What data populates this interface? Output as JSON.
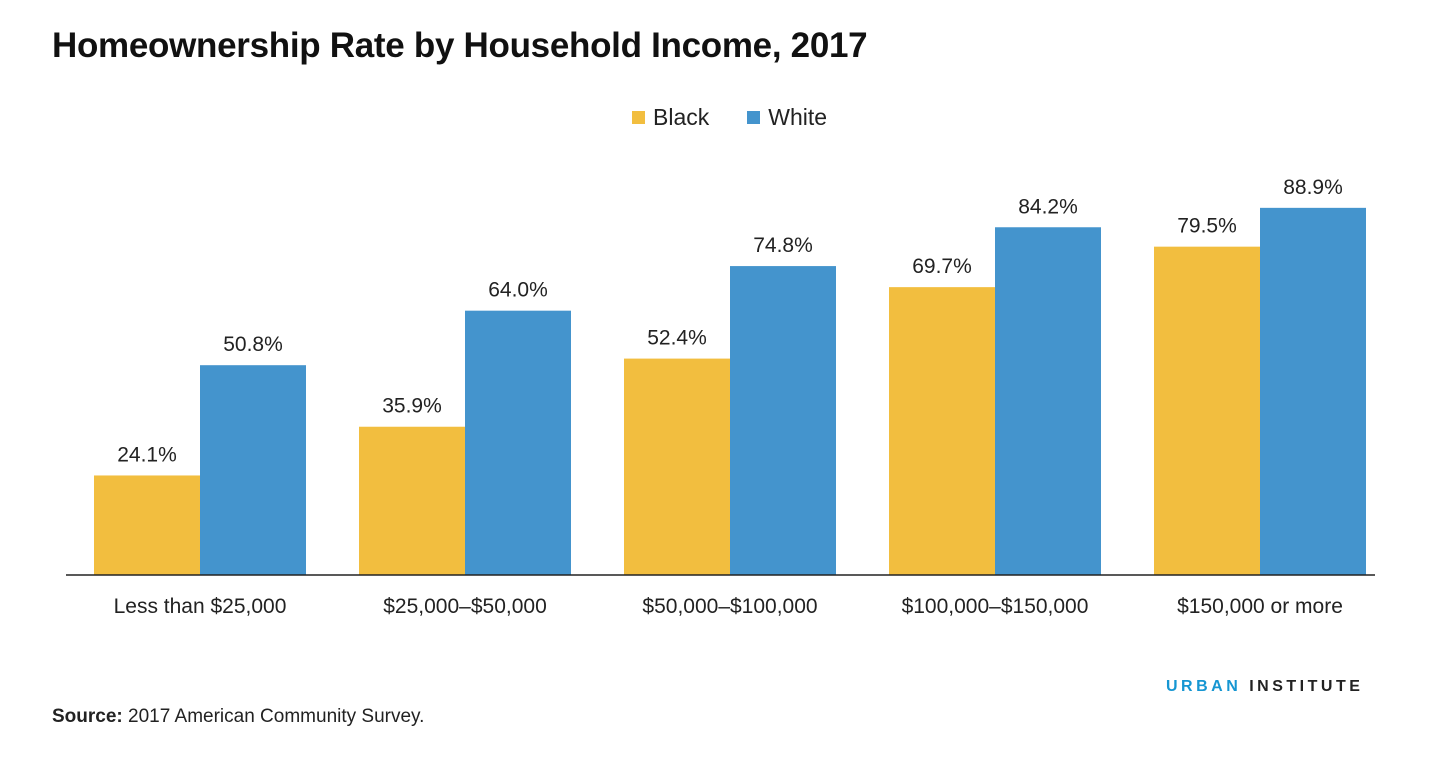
{
  "colors": {
    "black": "#f2be3f",
    "white": "#4494cd",
    "axis": "#222222",
    "brand_blue": "#1696d2"
  },
  "chart_data": {
    "type": "bar",
    "title": "Homeownership Rate by Household Income, 2017",
    "xlabel": "",
    "ylabel": "",
    "ylim": [
      0,
      100
    ],
    "grid": false,
    "legend_position": "top-center",
    "categories": [
      "Less than $25,000",
      "$25,000–$50,000",
      "$50,000–$100,000",
      "$100,000–$150,000",
      "$150,000 or more"
    ],
    "series": [
      {
        "name": "Black",
        "values": [
          24.1,
          35.9,
          52.4,
          69.7,
          79.5
        ],
        "labels": [
          "24.1%",
          "35.9%",
          "52.4%",
          "69.7%",
          "79.5%"
        ]
      },
      {
        "name": "White",
        "values": [
          50.8,
          64.0,
          74.8,
          84.2,
          88.9
        ],
        "labels": [
          "50.8%",
          "64.0%",
          "74.8%",
          "84.2%",
          "88.9%"
        ]
      }
    ]
  },
  "source": {
    "label": "Source:",
    "text": "2017 American Community Survey."
  },
  "brand": {
    "part1": "URBAN",
    "part2": "INSTITUTE"
  }
}
